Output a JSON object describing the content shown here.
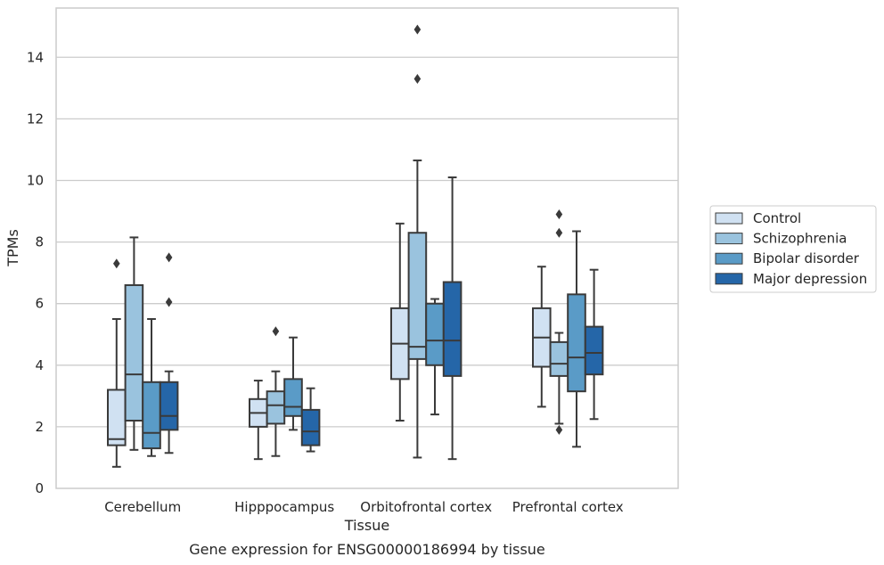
{
  "caption": "Gene expression for ENSG00000186994 by tissue",
  "chart_data": {
    "type": "box",
    "xlabel": "Tissue",
    "ylabel": "TPMs",
    "ylim": [
      0,
      15.6
    ],
    "yticks": [
      0,
      2,
      4,
      6,
      8,
      10,
      12,
      14
    ],
    "grid": "horizontal",
    "legend_position": "right",
    "categories": [
      "Cerebellum",
      "Hipppocampus",
      "Orbitofrontal cortex",
      "Prefrontal cortex"
    ],
    "series": [
      {
        "name": "Control",
        "color": "#d0e1f2",
        "boxes": [
          {
            "whisker_low": 0.7,
            "q1": 1.4,
            "median": 1.6,
            "q3": 3.2,
            "whisker_high": 5.5,
            "outliers": [
              7.3
            ]
          },
          {
            "whisker_low": 0.95,
            "q1": 2.0,
            "median": 2.45,
            "q3": 2.9,
            "whisker_high": 3.5,
            "outliers": []
          },
          {
            "whisker_low": 2.2,
            "q1": 3.55,
            "median": 4.7,
            "q3": 5.85,
            "whisker_high": 8.6,
            "outliers": []
          },
          {
            "whisker_low": 2.65,
            "q1": 3.95,
            "median": 4.9,
            "q3": 5.85,
            "whisker_high": 7.2,
            "outliers": []
          }
        ]
      },
      {
        "name": "Schizophrenia",
        "color": "#9ac3de",
        "boxes": [
          {
            "whisker_low": 1.25,
            "q1": 2.2,
            "median": 3.7,
            "q3": 6.6,
            "whisker_high": 8.15,
            "outliers": []
          },
          {
            "whisker_low": 1.05,
            "q1": 2.1,
            "median": 2.7,
            "q3": 3.15,
            "whisker_high": 3.8,
            "outliers": [
              5.1
            ]
          },
          {
            "whisker_low": 1.0,
            "q1": 4.2,
            "median": 4.6,
            "q3": 8.3,
            "whisker_high": 10.65,
            "outliers": [
              13.3,
              14.9
            ]
          },
          {
            "whisker_low": 2.1,
            "q1": 3.65,
            "median": 4.05,
            "q3": 4.75,
            "whisker_high": 5.05,
            "outliers": [
              1.9,
              8.3,
              8.9
            ]
          }
        ]
      },
      {
        "name": "Bipolar disorder",
        "color": "#5a9bc7",
        "boxes": [
          {
            "whisker_low": 1.05,
            "q1": 1.3,
            "median": 1.8,
            "q3": 3.45,
            "whisker_high": 5.5,
            "outliers": []
          },
          {
            "whisker_low": 1.9,
            "q1": 2.35,
            "median": 2.65,
            "q3": 3.55,
            "whisker_high": 4.9,
            "outliers": []
          },
          {
            "whisker_low": 2.4,
            "q1": 4.0,
            "median": 4.8,
            "q3": 6.0,
            "whisker_high": 6.15,
            "outliers": []
          },
          {
            "whisker_low": 1.35,
            "q1": 3.15,
            "median": 4.25,
            "q3": 6.3,
            "whisker_high": 8.35,
            "outliers": []
          }
        ]
      },
      {
        "name": "Major depression",
        "color": "#2566a8",
        "boxes": [
          {
            "whisker_low": 1.15,
            "q1": 1.9,
            "median": 2.35,
            "q3": 3.45,
            "whisker_high": 3.8,
            "outliers": [
              6.05,
              7.5
            ]
          },
          {
            "whisker_low": 1.2,
            "q1": 1.4,
            "median": 1.85,
            "q3": 2.55,
            "whisker_high": 3.25,
            "outliers": []
          },
          {
            "whisker_low": 0.95,
            "q1": 3.65,
            "median": 4.8,
            "q3": 6.7,
            "whisker_high": 10.1,
            "outliers": []
          },
          {
            "whisker_low": 2.25,
            "q1": 3.7,
            "median": 4.4,
            "q3": 5.25,
            "whisker_high": 7.1,
            "outliers": []
          }
        ]
      }
    ]
  }
}
